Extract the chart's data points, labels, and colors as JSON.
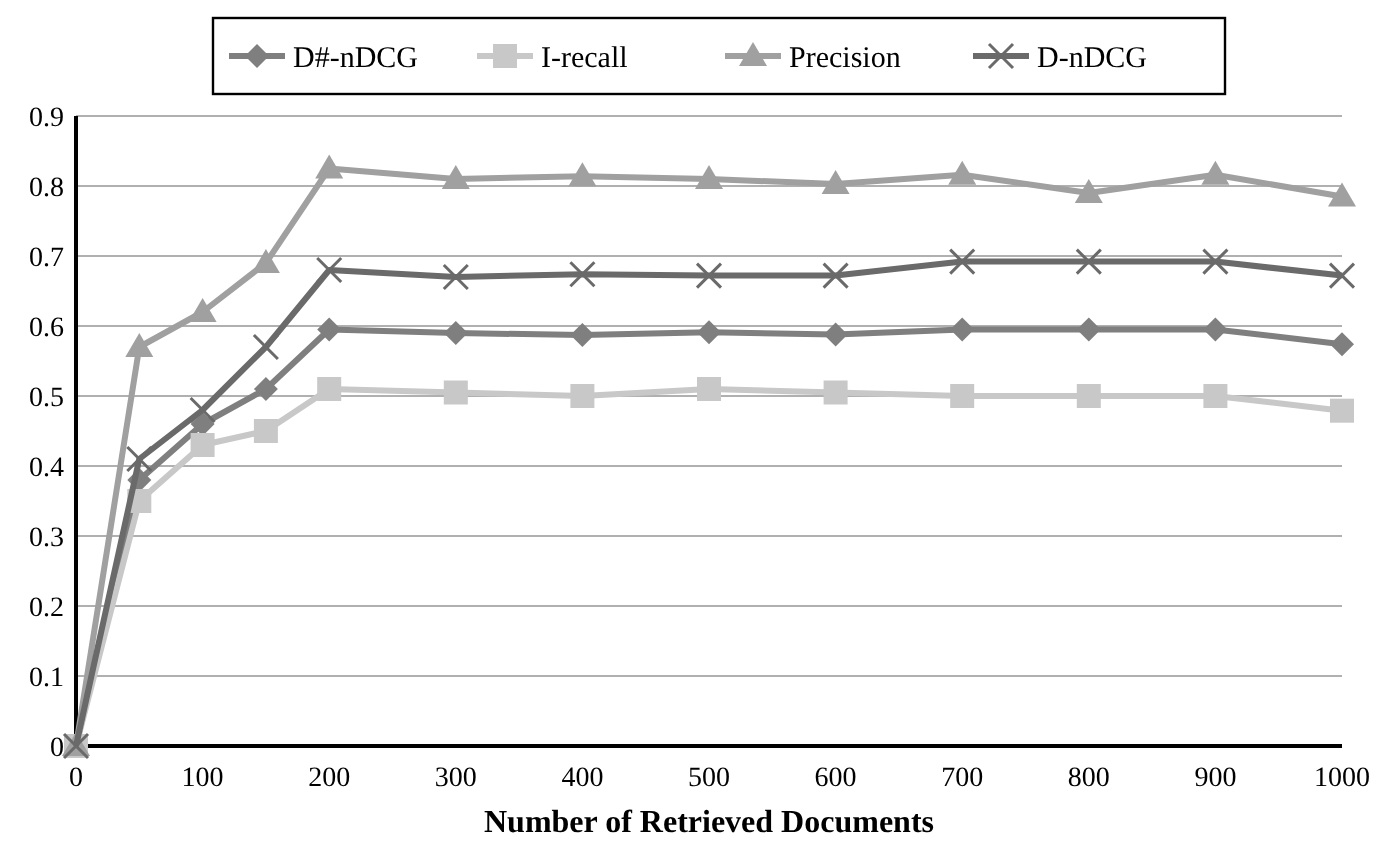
{
  "chart_data": {
    "type": "line",
    "xlabel": "Number of Retrieved Documents",
    "x": [
      0,
      50,
      100,
      150,
      200,
      300,
      400,
      500,
      600,
      700,
      800,
      900,
      1000
    ],
    "series": [
      {
        "name": "D#-nDCG",
        "color": "#7f7f7f",
        "marker": "diamond",
        "values": [
          0,
          0.38,
          0.46,
          0.51,
          0.595,
          0.59,
          0.587,
          0.591,
          0.588,
          0.595,
          0.595,
          0.595,
          0.574
        ]
      },
      {
        "name": "I-recall",
        "color": "#c8c8c8",
        "marker": "square",
        "values": [
          0,
          0.35,
          0.43,
          0.45,
          0.51,
          0.505,
          0.5,
          0.51,
          0.505,
          0.5,
          0.5,
          0.5,
          0.479
        ]
      },
      {
        "name": "Precision",
        "color": "#a0a0a0",
        "marker": "triangle",
        "values": [
          0,
          0.57,
          0.62,
          0.69,
          0.825,
          0.81,
          0.814,
          0.81,
          0.803,
          0.816,
          0.79,
          0.816,
          0.785
        ]
      },
      {
        "name": "D-nDCG",
        "color": "#6a6a6a",
        "marker": "cross",
        "values": [
          0,
          0.41,
          0.48,
          0.57,
          0.68,
          0.67,
          0.674,
          0.672,
          0.672,
          0.692,
          0.692,
          0.692,
          0.672
        ]
      }
    ],
    "xlim": [
      0,
      1000
    ],
    "xticks": [
      0,
      100,
      200,
      300,
      400,
      500,
      600,
      700,
      800,
      900,
      1000
    ],
    "ylim": [
      0,
      0.9
    ],
    "yticks": [
      0,
      0.1,
      0.2,
      0.3,
      0.4,
      0.5,
      0.6,
      0.7,
      0.8,
      0.9
    ],
    "grid": "y",
    "legend": "top"
  }
}
